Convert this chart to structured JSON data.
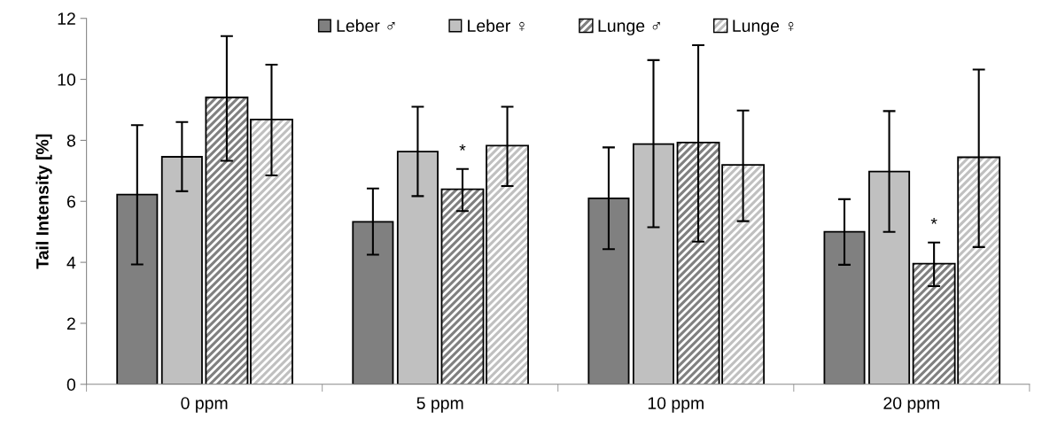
{
  "chart_data": {
    "type": "bar",
    "ylabel": "Tail Intensity [%]",
    "categories": [
      "0 ppm",
      "5 ppm",
      "10 ppm",
      "20 ppm"
    ],
    "series": [
      {
        "name": "Leber ♂",
        "color": "#808080",
        "values": [
          6.22,
          5.33,
          6.1,
          5.0
        ],
        "errors": [
          [
            3.93,
            8.5
          ],
          [
            4.25,
            6.42
          ],
          [
            4.43,
            7.77
          ],
          [
            3.92,
            6.07
          ]
        ]
      },
      {
        "name": "Leber ♀",
        "color": "#c0c0c0",
        "values": [
          7.46,
          7.63,
          7.88,
          6.98
        ],
        "errors": [
          [
            6.33,
            8.6
          ],
          [
            6.17,
            9.1
          ],
          [
            5.15,
            10.63
          ],
          [
            5.0,
            8.96
          ]
        ]
      },
      {
        "name": "Lunge ♂",
        "color": "#808080",
        "values": [
          9.38,
          6.37,
          7.9,
          3.93
        ],
        "errors": [
          [
            7.33,
            11.42
          ],
          [
            5.68,
            7.06
          ],
          [
            4.68,
            11.12
          ],
          [
            3.22,
            4.65
          ]
        ],
        "value_labels": [
          null,
          "*",
          null,
          "*"
        ]
      },
      {
        "name": "Lunge ♀",
        "color": "#c0c0c0",
        "values": [
          8.66,
          7.8,
          7.17,
          7.42
        ],
        "errors": [
          [
            6.85,
            10.48
          ],
          [
            6.5,
            9.1
          ],
          [
            5.35,
            8.98
          ],
          [
            4.5,
            10.32
          ]
        ]
      }
    ],
    "ylim": [
      0,
      12
    ],
    "yticks": [
      0,
      2,
      4,
      6,
      8,
      10,
      12
    ],
    "legend": "top",
    "grid": false
  }
}
